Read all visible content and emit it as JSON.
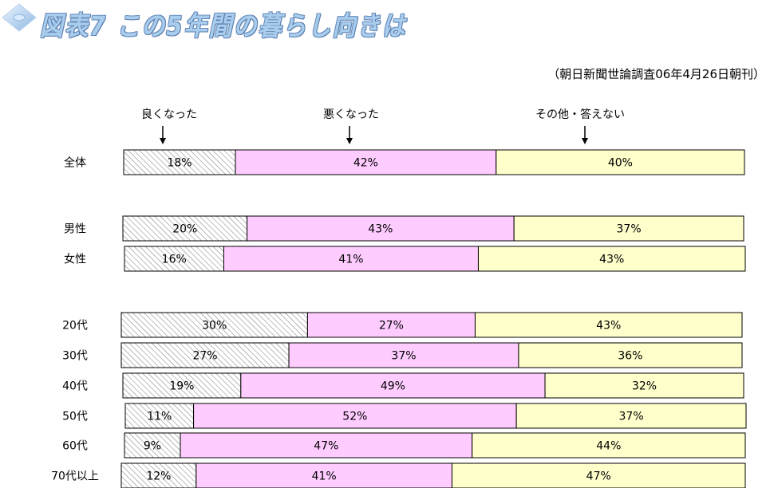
{
  "title": "図表7 この5年間の暮らし向きは",
  "source": "（朝日新聞世論調査06年4月26日朝刊）",
  "legend": [
    "良くなった",
    "悪くなった",
    "その他・答えない"
  ],
  "colors": {
    "series0": "hatch",
    "series1": "#ffccff",
    "series2": "#ffffcc",
    "hatch_line": "#7a7a7a"
  },
  "chart_data": {
    "type": "bar",
    "orientation": "horizontal-100%-stacked",
    "categories": [
      "全体",
      "男性",
      "女性",
      "20代",
      "30代",
      "40代",
      "50代",
      "60代",
      "70代以上"
    ],
    "series": [
      {
        "name": "良くなった",
        "values": [
          18,
          20,
          16,
          30,
          27,
          19,
          11,
          9,
          12
        ]
      },
      {
        "name": "悪くなった",
        "values": [
          42,
          43,
          41,
          27,
          37,
          49,
          52,
          47,
          41
        ]
      },
      {
        "name": "その他・答えない",
        "values": [
          40,
          37,
          43,
          43,
          36,
          32,
          37,
          44,
          47
        ]
      }
    ],
    "value_format": "percent"
  }
}
